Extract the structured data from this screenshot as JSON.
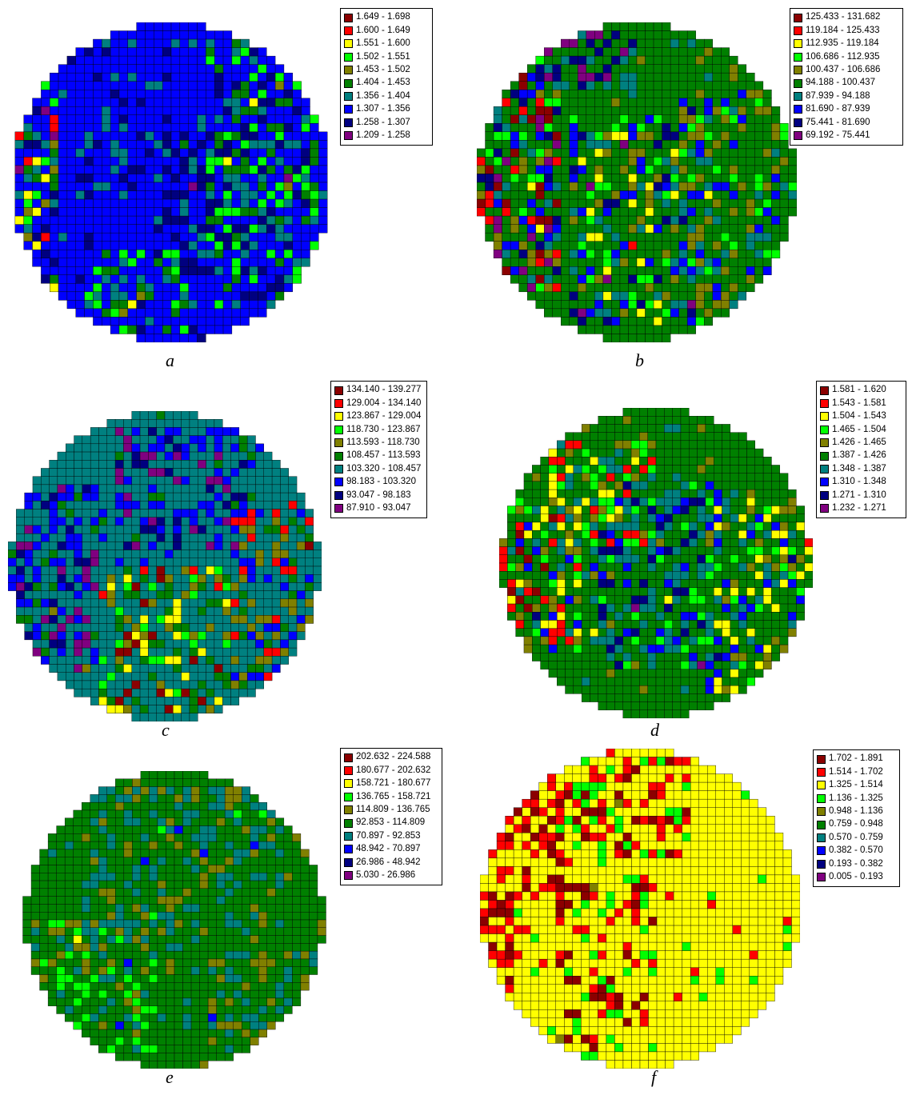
{
  "colors": {
    "class_colors": [
      "#8b0000",
      "#ff0000",
      "#ffff00",
      "#00ff00",
      "#808000",
      "#008000",
      "#008080",
      "#0000ff",
      "#000080",
      "#800080"
    ],
    "cell_border": "#000000",
    "background": "#ffffff"
  },
  "chart_data": [
    {
      "type": "heatmap",
      "panel": "a",
      "legend_placement": "right",
      "legend": [
        "1.649 - 1.698",
        "1.600 - 1.649",
        "1.551 - 1.600",
        "1.502 - 1.551",
        "1.453 - 1.502",
        "1.404 - 1.453",
        "1.356 - 1.404",
        "1.307 - 1.356",
        "1.258 - 1.307",
        "1.209 - 1.258"
      ],
      "dominant_class": 7,
      "bands": [
        {
          "x": [
            0.02,
            0.16
          ],
          "y": [
            0.08,
            0.95
          ],
          "classes": [
            8,
            6,
            5,
            4,
            3,
            2,
            1
          ]
        },
        {
          "x": [
            0.2,
            0.5
          ],
          "y": [
            0.15,
            0.55
          ],
          "classes": [
            8,
            7,
            7,
            7,
            6
          ]
        },
        {
          "x": [
            0.45,
            0.75
          ],
          "y": [
            0.3,
            0.8
          ],
          "classes": [
            8,
            8,
            7,
            6
          ]
        },
        {
          "x": [
            0.6,
            0.95
          ],
          "y": [
            0.05,
            0.9
          ],
          "classes": [
            7,
            6,
            5,
            3,
            8
          ]
        },
        {
          "x": [
            0.25,
            0.55
          ],
          "y": [
            0.7,
            0.98
          ],
          "classes": [
            7,
            6,
            5,
            3
          ]
        }
      ]
    },
    {
      "type": "heatmap",
      "panel": "b",
      "legend_placement": "right",
      "legend": [
        "125.433 - 131.682",
        "119.184 - 125.433",
        "112.935 - 119.184",
        "106.686 - 112.935",
        "100.437 - 106.686",
        "94.188 - 100.437",
        "87.939 - 94.188",
        "81.690 - 87.939",
        "75.441 - 81.690",
        "69.192 - 75.441"
      ],
      "dominant_class": 5,
      "bands": [
        {
          "x": [
            0.0,
            0.25
          ],
          "y": [
            0.1,
            0.85
          ],
          "classes": [
            8,
            7,
            6,
            4,
            3,
            1,
            0,
            9
          ]
        },
        {
          "x": [
            0.3,
            0.7
          ],
          "y": [
            0.3,
            0.95
          ],
          "classes": [
            4,
            5,
            6,
            3,
            2,
            7,
            8
          ]
        },
        {
          "x": [
            0.6,
            1.0
          ],
          "y": [
            0.2,
            0.9
          ],
          "classes": [
            4,
            4,
            5,
            6,
            7,
            3
          ]
        },
        {
          "x": [
            0.2,
            0.5
          ],
          "y": [
            0.02,
            0.2
          ],
          "classes": [
            9,
            8,
            5,
            6
          ]
        }
      ]
    },
    {
      "type": "heatmap",
      "panel": "c",
      "legend_placement": "right",
      "legend": [
        "134.140 - 139.277",
        "129.004 - 134.140",
        "123.867 - 129.004",
        "118.730 - 123.867",
        "113.593 - 118.730",
        "108.457 - 113.593",
        "103.320 - 108.457",
        "98.183 - 103.320",
        "93.047 - 98.183",
        "87.910 - 93.047"
      ],
      "dominant_class": 6,
      "bands": [
        {
          "x": [
            0.0,
            0.3
          ],
          "y": [
            0.25,
            0.85
          ],
          "classes": [
            7,
            8,
            9,
            7,
            5,
            6
          ]
        },
        {
          "x": [
            0.35,
            0.75
          ],
          "y": [
            0.05,
            0.45
          ],
          "classes": [
            7,
            7,
            8,
            6,
            9
          ]
        },
        {
          "x": [
            0.3,
            0.7
          ],
          "y": [
            0.5,
            0.98
          ],
          "classes": [
            6,
            5,
            4,
            3,
            2,
            0
          ]
        },
        {
          "x": [
            0.7,
            1.0
          ],
          "y": [
            0.3,
            0.9
          ],
          "classes": [
            5,
            4,
            6,
            7,
            1
          ]
        }
      ]
    },
    {
      "type": "heatmap",
      "panel": "d",
      "legend_placement": "right",
      "legend": [
        "1.581 - 1.620",
        "1.543 - 1.581",
        "1.504 - 1.543",
        "1.465 - 1.504",
        "1.426 - 1.465",
        "1.387 - 1.426",
        "1.348 - 1.387",
        "1.310 - 1.348",
        "1.271 - 1.310",
        "1.232 - 1.271"
      ],
      "dominant_class": 5,
      "bands": [
        {
          "x": [
            0.0,
            0.25
          ],
          "y": [
            0.3,
            0.8
          ],
          "classes": [
            2,
            3,
            4,
            6,
            1,
            0,
            7
          ]
        },
        {
          "x": [
            0.3,
            0.7
          ],
          "y": [
            0.25,
            0.85
          ],
          "classes": [
            6,
            6,
            7,
            8,
            5,
            3
          ]
        },
        {
          "x": [
            0.15,
            0.5
          ],
          "y": [
            0.1,
            0.45
          ],
          "classes": [
            2,
            3,
            4,
            6,
            1
          ]
        },
        {
          "x": [
            0.65,
            1.0
          ],
          "y": [
            0.3,
            0.95
          ],
          "classes": [
            5,
            4,
            6,
            7,
            2,
            3
          ]
        }
      ]
    },
    {
      "type": "heatmap",
      "panel": "e",
      "legend_placement": "right",
      "legend": [
        "202.632 - 224.588",
        "180.677 - 202.632",
        "158.721 - 180.677",
        "136.765 - 158.721",
        "114.809 - 136.765",
        "92.853 - 114.809",
        "70.897 - 92.853",
        "48.942 - 70.897",
        "26.986 - 48.942",
        "5.030 - 26.986"
      ],
      "dominant_class": 5,
      "bands": [
        {
          "x": [
            0.2,
            0.85
          ],
          "y": [
            0.05,
            0.55
          ],
          "classes": [
            6,
            6,
            5,
            4
          ]
        },
        {
          "x": [
            0.05,
            0.45
          ],
          "y": [
            0.5,
            0.95
          ],
          "classes": [
            6,
            5,
            4,
            3
          ]
        },
        {
          "x": [
            0.6,
            1.0
          ],
          "y": [
            0.6,
            1.0
          ],
          "classes": [
            6,
            5,
            4
          ]
        }
      ]
    },
    {
      "type": "heatmap",
      "panel": "f",
      "legend_placement": "right",
      "legend": [
        "1.702 - 1.891",
        "1.514 - 1.702",
        "1.325 - 1.514",
        "1.136 - 1.325",
        "0.948 - 1.136",
        "0.759 - 0.948",
        "0.570 - 0.759",
        "0.382 - 0.570",
        "0.193 - 0.382",
        "0.005 - 0.193"
      ],
      "dominant_class": 2,
      "bands": [
        {
          "x": [
            0.05,
            0.3
          ],
          "y": [
            0.08,
            0.5
          ],
          "classes": [
            1,
            1,
            0,
            2
          ]
        },
        {
          "x": [
            0.2,
            0.65
          ],
          "y": [
            0.0,
            0.35
          ],
          "classes": [
            1,
            1,
            0,
            2,
            3
          ]
        },
        {
          "x": [
            0.25,
            0.55
          ],
          "y": [
            0.4,
            0.98
          ],
          "classes": [
            1,
            3,
            2,
            0
          ]
        },
        {
          "x": [
            0.0,
            0.1
          ],
          "y": [
            0.45,
            0.75
          ],
          "classes": [
            1,
            0
          ]
        }
      ]
    }
  ],
  "panel_labels": {
    "a": "a",
    "b": "b",
    "c": "c",
    "d": "d",
    "e": "e",
    "f": "f"
  }
}
